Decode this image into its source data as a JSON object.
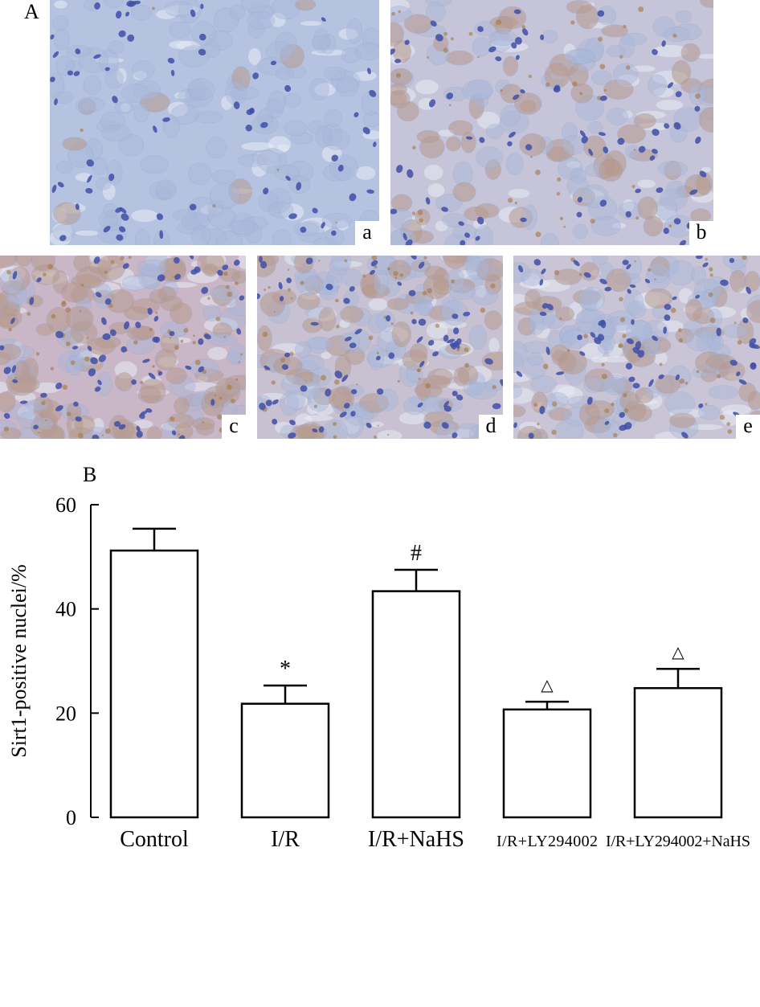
{
  "figure": {
    "panel_a_letter": "A",
    "panel_b_letter": "B"
  },
  "micrographs": [
    {
      "label": "a",
      "tone": "#b5c3e1",
      "stain": 0.04
    },
    {
      "label": "b",
      "tone": "#c6c4d8",
      "stain": 0.4
    },
    {
      "label": "c",
      "tone": "#c9b6c6",
      "stain": 0.6
    },
    {
      "label": "d",
      "tone": "#c8c1d2",
      "stain": 0.45
    },
    {
      "label": "e",
      "tone": "#c9c4d6",
      "stain": 0.38
    }
  ],
  "chart_data": {
    "type": "bar",
    "categories": [
      "Control",
      "I/R",
      "I/R+NaHS",
      "I/R+LY294002",
      "I/R+LY294002+NaHS"
    ],
    "values": [
      51.2,
      21.8,
      43.4,
      20.7,
      24.8
    ],
    "errors": [
      4.2,
      3.5,
      4.1,
      1.5,
      3.7
    ],
    "significance": [
      "",
      "*",
      "#",
      "△",
      "△"
    ],
    "xlabel": "",
    "ylabel": "Sirt1-positive nuclei/%",
    "ylim": [
      0,
      60
    ],
    "yticks": [
      0,
      20,
      40,
      60
    ],
    "grid": false,
    "bar_fill": "#ffffff",
    "bar_stroke": "#000000"
  }
}
